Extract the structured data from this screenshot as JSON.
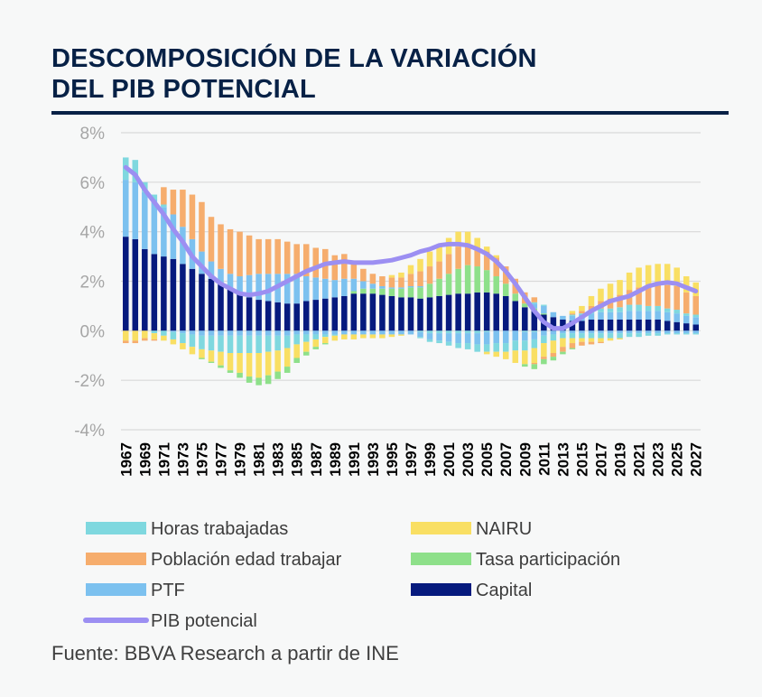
{
  "title_lines": [
    "DESCOMPOSICIÓN DE LA VARIACIÓN",
    "DEL PIB POTENCIAL"
  ],
  "source": "Fuente: BBVA Research a partir de INE",
  "colors": {
    "horas": "#7fd8df",
    "poblacion": "#f6ad6d",
    "ptf": "#7cc1ef",
    "nairu": "#f9df63",
    "tasa": "#8ee08a",
    "capital": "#061a7e",
    "pib": "#9c8ff2",
    "grid": "#d9d9d9"
  },
  "chart_data": {
    "type": "bar",
    "stacked": true,
    "title": "DESCOMPOSICIÓN DE LA VARIACIÓN DEL PIB POTENCIAL",
    "xlabel": "",
    "ylabel": "",
    "ylim": [
      -4,
      8
    ],
    "yticks": [
      "8%",
      "6%",
      "4%",
      "2%",
      "0%",
      "-2%",
      "-4%"
    ],
    "ytick_values": [
      8,
      6,
      4,
      2,
      0,
      -2,
      -4
    ],
    "categories": [
      1967,
      1968,
      1969,
      1970,
      1971,
      1972,
      1973,
      1974,
      1975,
      1976,
      1977,
      1978,
      1979,
      1980,
      1981,
      1982,
      1983,
      1984,
      1985,
      1986,
      1987,
      1988,
      1989,
      1990,
      1991,
      1992,
      1993,
      1994,
      1995,
      1996,
      1997,
      1998,
      1999,
      2000,
      2001,
      2002,
      2003,
      2004,
      2005,
      2006,
      2007,
      2008,
      2009,
      2010,
      2011,
      2012,
      2013,
      2014,
      2015,
      2016,
      2017,
      2018,
      2019,
      2020,
      2021,
      2022,
      2023,
      2024,
      2025,
      2026,
      2027
    ],
    "xtick_labels": [
      "1967",
      "1969",
      "1971",
      "1973",
      "1975",
      "1977",
      "1979",
      "1981",
      "1983",
      "1985",
      "1987",
      "1989",
      "1991",
      "1993",
      "1995",
      "1997",
      "1999",
      "2001",
      "2003",
      "2005",
      "2007",
      "2009",
      "2011",
      "2013",
      "2015",
      "2017",
      "2019",
      "2021",
      "2023",
      "2025",
      "2027"
    ],
    "legend": [
      {
        "key": "horas",
        "label": "Horas trabajadas"
      },
      {
        "key": "nairu",
        "label": "NAIRU"
      },
      {
        "key": "poblacion",
        "label": "Población edad trabajar"
      },
      {
        "key": "tasa",
        "label": "Tasa participación"
      },
      {
        "key": "ptf",
        "label": "PTF"
      },
      {
        "key": "capital",
        "label": "Capital"
      },
      {
        "key": "pib",
        "label": "PIB potencial"
      }
    ],
    "series": [
      {
        "key": "capital",
        "name": "Capital",
        "values": [
          3.8,
          3.7,
          3.3,
          3.1,
          3.0,
          2.9,
          2.7,
          2.5,
          2.3,
          2.1,
          1.9,
          1.7,
          1.5,
          1.35,
          1.25,
          1.2,
          1.15,
          1.1,
          1.1,
          1.2,
          1.25,
          1.3,
          1.35,
          1.4,
          1.5,
          1.5,
          1.5,
          1.45,
          1.4,
          1.35,
          1.35,
          1.3,
          1.35,
          1.4,
          1.45,
          1.5,
          1.5,
          1.55,
          1.55,
          1.5,
          1.4,
          1.2,
          0.95,
          0.8,
          0.65,
          0.55,
          0.45,
          0.4,
          0.4,
          0.45,
          0.45,
          0.45,
          0.45,
          0.45,
          0.45,
          0.45,
          0.45,
          0.4,
          0.35,
          0.3,
          0.25
        ]
      },
      {
        "key": "tasa",
        "name": "Tasa participación",
        "values": [
          0,
          0,
          0,
          0,
          0,
          0,
          0,
          0,
          0,
          0,
          0,
          0,
          0,
          0,
          0,
          0,
          0,
          0,
          0,
          0,
          0,
          0,
          0,
          0,
          0.1,
          0.2,
          0.2,
          0.25,
          0.3,
          0.35,
          0.4,
          0.45,
          0.55,
          0.7,
          0.85,
          1.0,
          1.15,
          1.05,
          0.9,
          0.7,
          0.5,
          0.3,
          0.15,
          0.1,
          0.05,
          0,
          0,
          0,
          0,
          0,
          0,
          0,
          0,
          0,
          0,
          0,
          0,
          0,
          0,
          0,
          0
        ]
      },
      {
        "key": "ptf",
        "name": "PTF",
        "values": [
          2.3,
          2.3,
          2.3,
          2.2,
          2.0,
          1.8,
          1.5,
          1.2,
          0.9,
          0.7,
          0.6,
          0.6,
          0.7,
          0.9,
          1.05,
          1.1,
          1.15,
          1.2,
          1.2,
          1.0,
          0.9,
          0.8,
          0.7,
          0.7,
          0.5,
          0.3,
          0.2,
          0.1,
          0.05,
          0.05,
          0.05,
          0.05,
          0,
          0,
          0,
          0,
          0,
          0,
          0,
          0,
          0,
          0,
          0,
          0.2,
          0.3,
          0.2,
          0.15,
          0.2,
          0.25,
          0.25,
          0.3,
          0.3,
          0.3,
          0.35,
          0.35,
          0.35,
          0.35,
          0.35,
          0.35,
          0.3,
          0.3
        ]
      },
      {
        "key": "horas",
        "name": "Horas trabajadas",
        "values": [
          0.9,
          0.9,
          0.4,
          0.2,
          0.1,
          0,
          0,
          0,
          0,
          0,
          0,
          0,
          0,
          0,
          0,
          0,
          0,
          0,
          0,
          0,
          0,
          0,
          0,
          0,
          0,
          0,
          0,
          0,
          0,
          0,
          0,
          0,
          0,
          0,
          0,
          0,
          0,
          0,
          0,
          0,
          0,
          0,
          0,
          0.05,
          0.05,
          0,
          0,
          0.05,
          0.05,
          0.1,
          0.15,
          0.15,
          0.2,
          0.25,
          0.25,
          0.2,
          0.2,
          0.15,
          0.15,
          0.1,
          0.1
        ]
      },
      {
        "key": "poblacion",
        "name": "Población edad trabajar",
        "values": [
          0,
          0,
          0,
          0,
          0.7,
          1.0,
          1.5,
          1.8,
          2.0,
          1.8,
          1.8,
          1.8,
          1.8,
          1.6,
          1.4,
          1.4,
          1.4,
          1.3,
          1.2,
          1.3,
          1.2,
          1.2,
          1.0,
          1.0,
          0.7,
          0.5,
          0.4,
          0.4,
          0.4,
          0.4,
          0.5,
          0.6,
          0.7,
          0.7,
          0.8,
          0.9,
          0.85,
          0.75,
          0.75,
          0.75,
          0.7,
          0.6,
          0.45,
          0.2,
          0,
          0,
          0,
          0.05,
          0.1,
          0.2,
          0.3,
          0.4,
          0.5,
          0.6,
          0.7,
          0.8,
          0.85,
          0.95,
          0.95,
          0.85,
          0.75
        ]
      },
      {
        "key": "nairu",
        "name": "NAIRU",
        "values": [
          0,
          0,
          0,
          0,
          0,
          0,
          0,
          0,
          0,
          0,
          0,
          0,
          0,
          0,
          0,
          0,
          0,
          0,
          0,
          0,
          0,
          0,
          0,
          0,
          0,
          0,
          0,
          0,
          0.1,
          0.2,
          0.35,
          0.5,
          0.6,
          0.7,
          0.65,
          0.6,
          0.5,
          0.4,
          0.2,
          0.1,
          0,
          0,
          0,
          0,
          0,
          0,
          0,
          0.1,
          0.2,
          0.4,
          0.5,
          0.6,
          0.6,
          0.7,
          0.8,
          0.85,
          0.85,
          0.85,
          0.75,
          0.65,
          0.55
        ]
      },
      {
        "key": "horas_neg",
        "name": "Horas trabajadas (negativo)",
        "values": [
          0,
          0,
          0,
          0,
          0,
          0,
          0,
          0,
          0,
          0,
          0,
          0,
          0,
          0,
          0,
          0,
          0,
          0,
          0,
          0,
          0,
          0,
          0,
          0,
          0,
          0,
          0,
          0,
          0,
          0,
          0,
          -0.05,
          -0.1,
          -0.1,
          -0.1,
          -0.1,
          -0.1,
          -0.1,
          -0.05,
          0,
          0,
          0,
          -0.05,
          -0.05,
          0,
          0,
          0,
          0,
          0,
          0,
          0,
          0,
          0,
          0,
          0,
          0,
          0,
          0,
          0,
          0,
          0
        ]
      },
      {
        "key": "ptf_neg",
        "name": "PTF (negativo)",
        "values": [
          0,
          0,
          0,
          0,
          0,
          -0.05,
          -0.1,
          -0.15,
          -0.2,
          -0.2,
          -0.2,
          -0.2,
          -0.2,
          -0.2,
          -0.2,
          -0.2,
          -0.2,
          -0.2,
          -0.15,
          -0.15,
          -0.15,
          -0.15,
          -0.15,
          -0.15,
          -0.15,
          -0.15,
          -0.15,
          -0.15,
          -0.15,
          -0.15,
          -0.15,
          -0.2,
          -0.25,
          -0.3,
          -0.35,
          -0.4,
          -0.4,
          -0.45,
          -0.5,
          -0.5,
          -0.5,
          -0.4,
          -0.35,
          -0.3,
          -0.2,
          -0.15,
          -0.1,
          -0.1,
          -0.1,
          -0.1,
          -0.1,
          -0.1,
          -0.1,
          -0.1,
          -0.1,
          -0.1,
          -0.1,
          -0.1,
          -0.1,
          -0.1,
          -0.1
        ]
      },
      {
        "key": "horas_neg2",
        "name": "Horas trabajadas (negativo 2)",
        "values": [
          0,
          0,
          0,
          -0.1,
          -0.2,
          -0.3,
          -0.4,
          -0.5,
          -0.55,
          -0.6,
          -0.65,
          -0.7,
          -0.7,
          -0.7,
          -0.7,
          -0.65,
          -0.6,
          -0.5,
          -0.4,
          -0.3,
          -0.2,
          -0.1,
          -0.05,
          0,
          0,
          0,
          0,
          0,
          0,
          0,
          0,
          -0.05,
          -0.1,
          -0.1,
          -0.15,
          -0.2,
          -0.25,
          -0.3,
          -0.3,
          -0.35,
          -0.35,
          -0.4,
          -0.4,
          -0.35,
          -0.3,
          -0.25,
          -0.2,
          -0.2,
          -0.2,
          -0.2,
          -0.2,
          -0.2,
          -0.2,
          -0.15,
          -0.15,
          -0.1,
          -0.1,
          -0.05,
          -0.05,
          -0.05,
          -0.05
        ]
      },
      {
        "key": "nairu_neg",
        "name": "NAIRU (negativo)",
        "values": [
          -0.4,
          -0.4,
          -0.3,
          -0.25,
          -0.2,
          -0.2,
          -0.25,
          -0.3,
          -0.35,
          -0.45,
          -0.55,
          -0.7,
          -0.8,
          -0.95,
          -1.0,
          -0.95,
          -0.85,
          -0.75,
          -0.55,
          -0.4,
          -0.3,
          -0.25,
          -0.2,
          -0.2,
          -0.2,
          -0.15,
          -0.15,
          -0.15,
          -0.1,
          -0.05,
          0,
          0,
          0,
          0,
          0,
          0,
          0,
          0,
          -0.1,
          -0.2,
          -0.3,
          -0.5,
          -0.55,
          -0.6,
          -0.55,
          -0.5,
          -0.35,
          -0.2,
          -0.15,
          -0.15,
          -0.15,
          -0.1,
          -0.05,
          0,
          0,
          0,
          0,
          0,
          0,
          0,
          0
        ]
      },
      {
        "key": "pob_neg",
        "name": "Población edad trabajar (negativo)",
        "values": [
          -0.1,
          -0.1,
          -0.1,
          -0.05,
          0,
          0,
          0,
          0,
          0,
          0,
          0,
          0,
          0,
          0,
          0,
          0,
          0,
          0,
          0,
          0,
          0,
          0,
          0,
          0,
          0,
          0,
          0,
          0,
          0,
          0,
          0,
          0,
          0,
          0,
          0,
          0,
          0,
          0,
          0,
          0,
          0,
          0,
          0,
          -0.05,
          -0.1,
          -0.15,
          -0.2,
          -0.2,
          -0.15,
          -0.1,
          -0.05,
          0,
          0,
          0,
          0,
          0,
          0,
          0,
          0,
          0,
          0
        ]
      },
      {
        "key": "tasa_neg",
        "name": "Tasa participación (negativo)",
        "values": [
          0,
          0,
          0,
          0,
          0,
          0,
          0,
          0,
          -0.05,
          -0.05,
          -0.1,
          -0.1,
          -0.2,
          -0.25,
          -0.3,
          -0.35,
          -0.3,
          -0.25,
          -0.2,
          -0.15,
          -0.1,
          -0.05,
          0,
          0,
          0,
          0,
          0,
          0,
          0,
          0,
          0,
          0,
          0,
          0,
          0,
          0,
          0,
          0,
          0,
          0,
          0,
          0,
          -0.1,
          -0.2,
          -0.2,
          -0.15,
          -0.1,
          -0.05,
          0,
          0,
          0,
          0,
          0,
          0,
          0,
          0,
          0,
          0,
          0,
          0,
          0
        ]
      },
      {
        "key": "pib",
        "name": "PIB potencial",
        "type": "line",
        "values": [
          6.6,
          6.3,
          5.7,
          5.2,
          4.7,
          4.1,
          3.6,
          3.0,
          2.6,
          2.2,
          1.9,
          1.7,
          1.5,
          1.45,
          1.5,
          1.6,
          1.8,
          2.0,
          2.2,
          2.4,
          2.55,
          2.7,
          2.75,
          2.8,
          2.75,
          2.75,
          2.75,
          2.8,
          2.85,
          2.95,
          3.05,
          3.2,
          3.3,
          3.45,
          3.5,
          3.5,
          3.45,
          3.3,
          3.1,
          2.8,
          2.4,
          1.9,
          1.35,
          0.8,
          0.35,
          0.1,
          0.1,
          0.3,
          0.55,
          0.8,
          1.0,
          1.2,
          1.3,
          1.4,
          1.6,
          1.8,
          1.9,
          1.95,
          1.9,
          1.75,
          1.6
        ]
      }
    ]
  }
}
